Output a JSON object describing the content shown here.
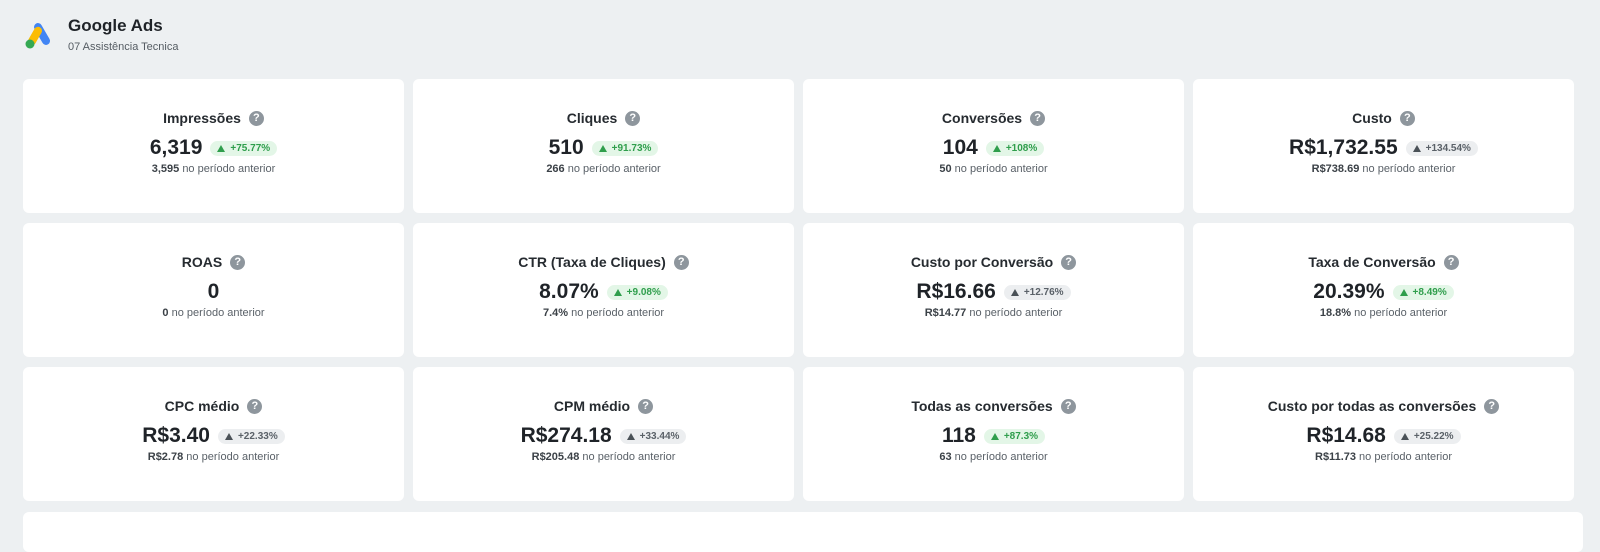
{
  "header": {
    "title": "Google Ads",
    "subtitle": "07 Assistência Tecnica",
    "colors": {
      "blue": "#4285f4",
      "yellow": "#fbbc04",
      "green": "#34a853"
    }
  },
  "prev_suffix": "no período anterior",
  "help_glyph": "?",
  "cards": [
    {
      "title": "Impressões",
      "value": "6,319",
      "change": "+75.77%",
      "trend": "green",
      "prev": "3,595"
    },
    {
      "title": "Cliques",
      "value": "510",
      "change": "+91.73%",
      "trend": "green",
      "prev": "266"
    },
    {
      "title": "Conversões",
      "value": "104",
      "change": "+108%",
      "trend": "green",
      "prev": "50"
    },
    {
      "title": "Custo",
      "value": "R$1,732.55",
      "change": "+134.54%",
      "trend": "gray",
      "prev": "R$738.69"
    },
    {
      "title": "ROAS",
      "value": "0",
      "change": "",
      "trend": "none",
      "prev": "0"
    },
    {
      "title": "CTR (Taxa de Cliques)",
      "value": "8.07%",
      "change": "+9.08%",
      "trend": "green",
      "prev": "7.4%"
    },
    {
      "title": "Custo por Conversão",
      "value": "R$16.66",
      "change": "+12.76%",
      "trend": "gray",
      "prev": "R$14.77"
    },
    {
      "title": "Taxa de Conversão",
      "value": "20.39%",
      "change": "+8.49%",
      "trend": "green",
      "prev": "18.8%"
    },
    {
      "title": "CPC médio",
      "value": "R$3.40",
      "change": "+22.33%",
      "trend": "gray",
      "prev": "R$2.78"
    },
    {
      "title": "CPM médio",
      "value": "R$274.18",
      "change": "+33.44%",
      "trend": "gray",
      "prev": "R$205.48"
    },
    {
      "title": "Todas as conversões",
      "value": "118",
      "change": "+87.3%",
      "trend": "green",
      "prev": "63"
    },
    {
      "title": "Custo por todas as conversões",
      "value": "R$14.68",
      "change": "+25.22%",
      "trend": "gray",
      "prev": "R$11.73"
    }
  ]
}
